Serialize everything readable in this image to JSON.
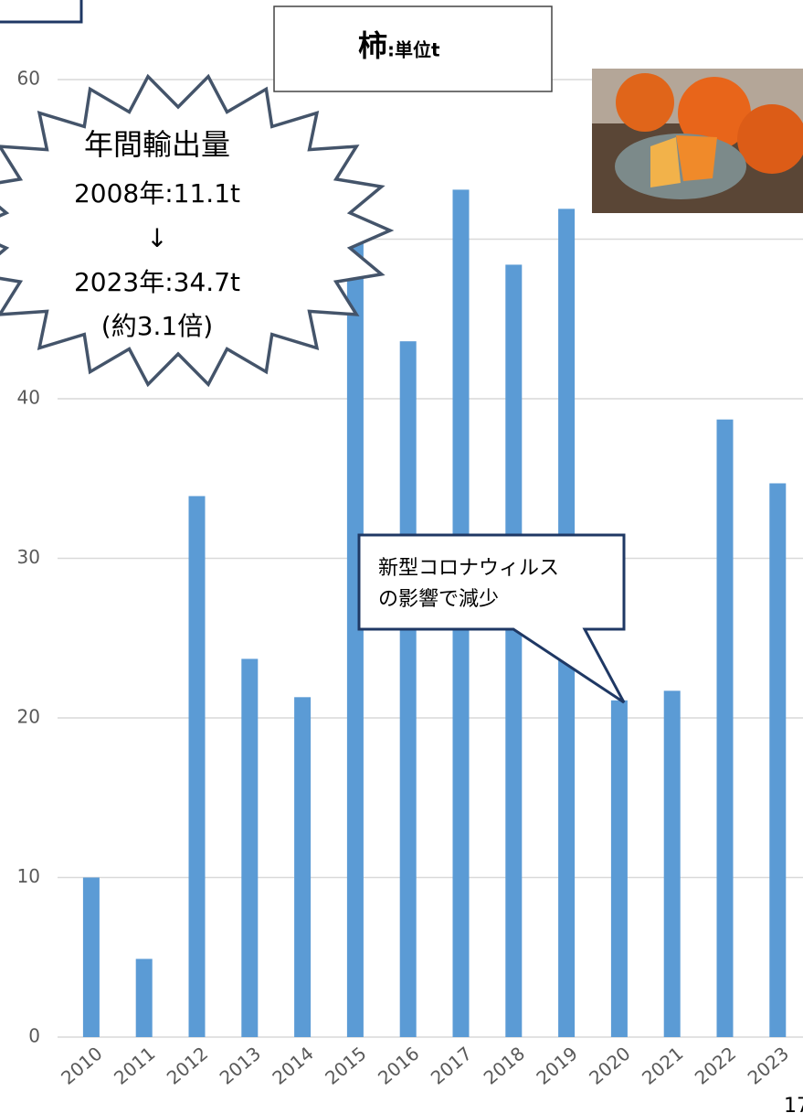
{
  "chart_data": {
    "type": "bar",
    "title": "柿",
    "unit": ":単位t",
    "categories": [
      "2010",
      "2011",
      "2012",
      "2013",
      "2014",
      "2015",
      "2016",
      "2017",
      "2018",
      "2019",
      "2020",
      "2021",
      "2022",
      "2023"
    ],
    "values": [
      10.0,
      4.9,
      33.9,
      23.7,
      21.3,
      50.5,
      43.6,
      53.1,
      48.4,
      51.9,
      21.1,
      21.7,
      38.7,
      34.7
    ],
    "color": "#5b9bd5",
    "ylim": [
      0,
      60
    ],
    "yticks": [
      0,
      10,
      20,
      30,
      40,
      50,
      60
    ],
    "grid": true,
    "burst_lines": [
      "年間輸出量",
      "2008年:11.1t",
      "↓",
      "2023年:34.7t",
      "(約3.1倍)"
    ],
    "callout_lines": [
      "新型コロナウィルス",
      "の影響で減少"
    ]
  },
  "page_number": "17"
}
